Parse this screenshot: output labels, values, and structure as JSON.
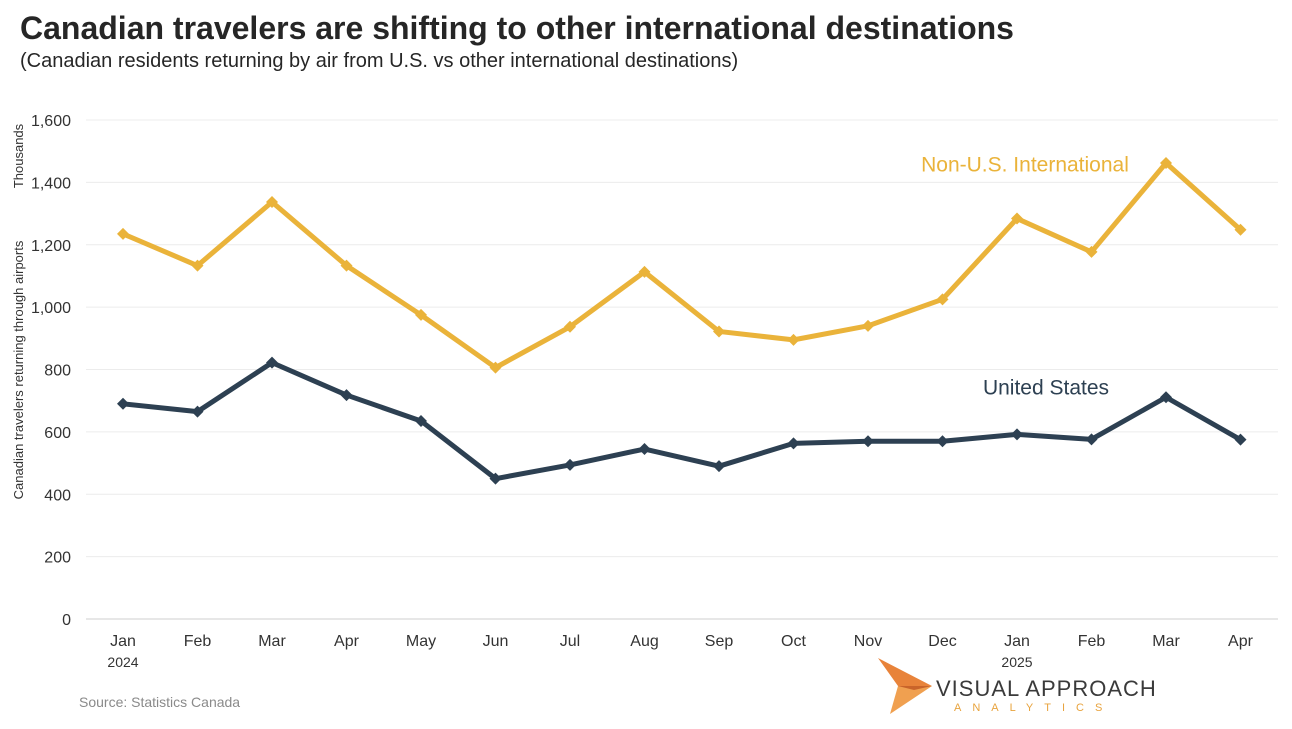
{
  "header": {
    "title": "Canadian travelers are shifting to other international destinations",
    "subtitle": "(Canadian residents returning by air from U.S. vs other international destinations)"
  },
  "footer": {
    "source": "Source: Statistics Canada"
  },
  "logo": {
    "name_line1": "VISUAL APPROACH",
    "name_line2": "ANALYTICS",
    "colors": {
      "orange": "#e8833a",
      "gold": "#e8a33d"
    }
  },
  "chart_data": {
    "type": "line",
    "title": "Canadian travelers are shifting to other international destinations",
    "subtitle": "(Canadian residents returning by air from U.S. vs other international destinations)",
    "xlabel": "",
    "ylabel": "Canadian travelers returning through airports",
    "y_unit_label": "Thousands",
    "ylim": [
      0,
      1600
    ],
    "yticks": [
      0,
      200,
      400,
      600,
      800,
      1000,
      1200,
      1400,
      1600
    ],
    "ytick_labels": [
      "0",
      "200",
      "400",
      "600",
      "800",
      "1,000",
      "1,200",
      "1,400",
      "1,600"
    ],
    "categories": [
      "Jan",
      "Feb",
      "Mar",
      "Apr",
      "May",
      "Jun",
      "Jul",
      "Aug",
      "Sep",
      "Oct",
      "Nov",
      "Dec",
      "Jan",
      "Feb",
      "Mar",
      "Apr"
    ],
    "year_labels": [
      {
        "category_index": 0,
        "label": "2024"
      },
      {
        "category_index": 12,
        "label": "2025"
      }
    ],
    "grid": "horizontal",
    "legend": "inline labels",
    "series": [
      {
        "name": "Non-U.S. International",
        "color": "#eab33a",
        "values": [
          1235,
          1133,
          1337,
          1133,
          975,
          806,
          937,
          1113,
          922,
          895,
          940,
          1025,
          1284,
          1177,
          1462,
          1248
        ]
      },
      {
        "name": "United States",
        "color": "#2d4052",
        "values": [
          690,
          665,
          822,
          718,
          635,
          450,
          494,
          545,
          490,
          563,
          570,
          570,
          592,
          576,
          711,
          575
        ]
      }
    ],
    "source": "Source: Statistics Canada"
  }
}
